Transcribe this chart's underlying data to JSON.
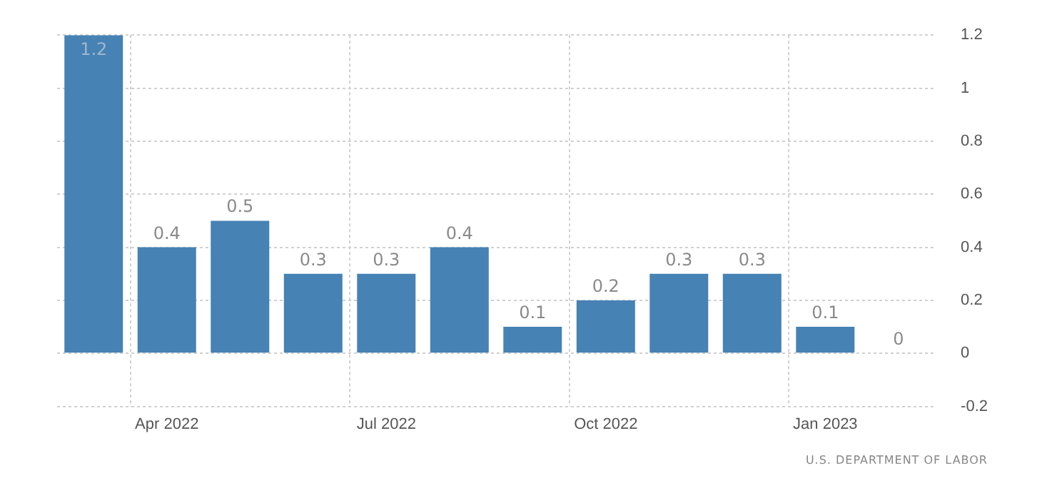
{
  "chart_data": {
    "type": "bar",
    "categories": [
      null,
      "Apr 2022",
      null,
      null,
      "Jul 2022",
      null,
      null,
      "Oct 2022",
      null,
      null,
      "Jan 2023",
      null
    ],
    "values": [
      1.2,
      0.4,
      0.5,
      0.3,
      0.3,
      0.4,
      0.1,
      0.2,
      0.3,
      0.3,
      0.1,
      0
    ],
    "color": "#4682b4",
    "ylim": [
      -0.2,
      1.2
    ],
    "yticks": [
      -0.2,
      0,
      0.2,
      0.4,
      0.6,
      0.8,
      1,
      1.2
    ],
    "grid": true,
    "data_labels": true,
    "annotations": [
      "U.S. DEPARTMENT OF LABOR"
    ]
  }
}
